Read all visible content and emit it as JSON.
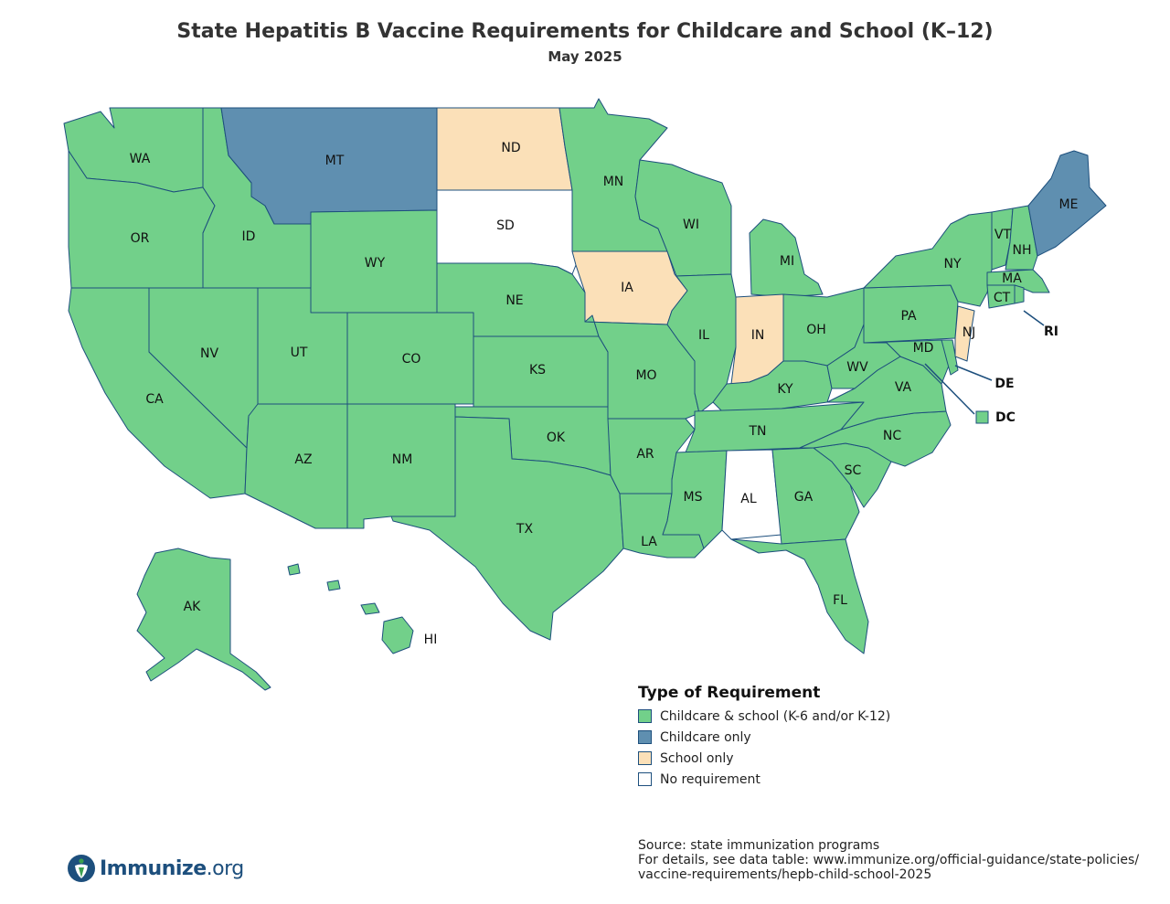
{
  "title": "State Hepatitis B Vaccine Requirements for Childcare and School (K–12)",
  "subtitle": "May 2025",
  "colors": {
    "childcare_and_school": "#72d08a",
    "childcare_only": "#5f8fb0",
    "school_only": "#fbe0b8",
    "none": "#ffffff",
    "border": "#1d4f7d"
  },
  "legend": {
    "title": "Type of Requirement",
    "items": [
      {
        "key": "childcare_and_school",
        "label": "Childcare & school (K-6 and/or K-12)"
      },
      {
        "key": "childcare_only",
        "label": "Childcare only"
      },
      {
        "key": "school_only",
        "label": "School only"
      },
      {
        "key": "none",
        "label": "No requirement"
      }
    ]
  },
  "states": {
    "WA": "childcare_and_school",
    "OR": "childcare_and_school",
    "CA": "childcare_and_school",
    "ID": "childcare_and_school",
    "NV": "childcare_and_school",
    "MT": "childcare_only",
    "WY": "childcare_and_school",
    "UT": "childcare_and_school",
    "AZ": "childcare_and_school",
    "CO": "childcare_and_school",
    "NM": "childcare_and_school",
    "ND": "school_only",
    "SD": "none",
    "NE": "childcare_and_school",
    "KS": "childcare_and_school",
    "OK": "childcare_and_school",
    "TX": "childcare_and_school",
    "MN": "childcare_and_school",
    "IA": "school_only",
    "MO": "childcare_and_school",
    "AR": "childcare_and_school",
    "LA": "childcare_and_school",
    "WI": "childcare_and_school",
    "IL": "childcare_and_school",
    "MI": "childcare_and_school",
    "IN": "school_only",
    "OH": "childcare_and_school",
    "KY": "childcare_and_school",
    "TN": "childcare_and_school",
    "MS": "childcare_and_school",
    "AL": "none",
    "GA": "childcare_and_school",
    "FL": "childcare_and_school",
    "SC": "childcare_and_school",
    "NC": "childcare_and_school",
    "VA": "childcare_and_school",
    "WV": "childcare_and_school",
    "PA": "childcare_and_school",
    "NY": "childcare_and_school",
    "VT": "childcare_and_school",
    "NH": "childcare_and_school",
    "ME": "childcare_only",
    "MA": "childcare_and_school",
    "CT": "childcare_and_school",
    "RI": "childcare_and_school",
    "NJ": "school_only",
    "DE": "childcare_and_school",
    "MD": "childcare_and_school",
    "DC": "childcare_and_school",
    "AK": "childcare_and_school",
    "HI": "childcare_and_school"
  },
  "labels": {
    "WA": "WA",
    "OR": "OR",
    "CA": "CA",
    "ID": "ID",
    "NV": "NV",
    "MT": "MT",
    "WY": "WY",
    "UT": "UT",
    "AZ": "AZ",
    "CO": "CO",
    "NM": "NM",
    "ND": "ND",
    "SD": "SD",
    "NE": "NE",
    "KS": "KS",
    "OK": "OK",
    "TX": "TX",
    "MN": "MN",
    "IA": "IA",
    "MO": "MO",
    "AR": "AR",
    "LA": "LA",
    "WI": "WI",
    "IL": "IL",
    "MI": "MI",
    "IN": "IN",
    "OH": "OH",
    "KY": "KY",
    "TN": "TN",
    "MS": "MS",
    "AL": "AL",
    "GA": "GA",
    "FL": "FL",
    "SC": "SC",
    "NC": "NC",
    "VA": "VA",
    "WV": "WV",
    "PA": "PA",
    "NY": "NY",
    "VT": "VT",
    "NH": "NH",
    "ME": "ME",
    "MA": "MA",
    "CT": "CT",
    "RI": "RI",
    "NJ": "NJ",
    "DE": "DE",
    "MD": "MD",
    "DC": "DC",
    "AK": "AK",
    "HI": "HI"
  },
  "source": {
    "line1": "Source: state immunization programs",
    "line2": "For details, see data table: www.immunize.org/official-guidance/state-policies/",
    "line3": "vaccine-requirements/hepb-child-school-2025"
  },
  "logo": {
    "name": "Immunize",
    "suffix": ".org",
    "icon": "immunize-logo-icon"
  }
}
